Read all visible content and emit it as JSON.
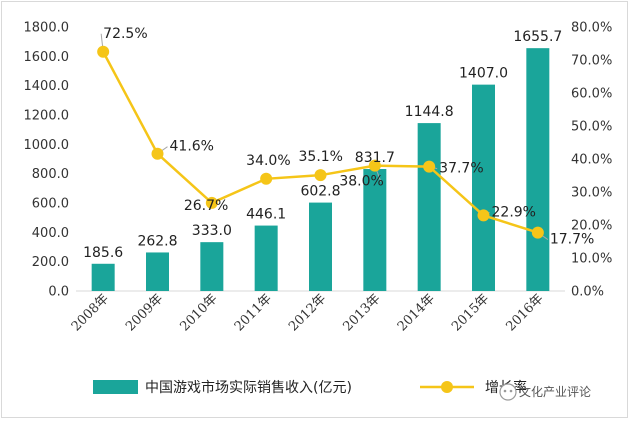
{
  "chart_data": {
    "type": "bar+line",
    "categories": [
      "2008年",
      "2009年",
      "2010年",
      "2011年",
      "2012年",
      "2013年",
      "2014年",
      "2015年",
      "2016年"
    ],
    "series": [
      {
        "name": "中国游戏市场实际销售收入(亿元)",
        "type": "bar",
        "axis": "left",
        "values": [
          185.6,
          262.8,
          333.0,
          446.1,
          602.8,
          831.7,
          1144.8,
          1407.0,
          1655.7
        ],
        "labels": [
          "185.6",
          "262.8",
          "333.0",
          "446.1",
          "602.8",
          "831.7",
          "1144.8",
          "1407.0",
          "1655.7"
        ]
      },
      {
        "name": "增长率",
        "type": "line",
        "axis": "right",
        "values": [
          72.5,
          41.6,
          26.7,
          34.0,
          35.1,
          38.0,
          37.7,
          22.9,
          17.7
        ],
        "labels": [
          "72.5%",
          "41.6%",
          "26.7%",
          "34.0%",
          "35.1%",
          "38.0%",
          "37.7%",
          "22.9%",
          "17.7%"
        ]
      }
    ],
    "y_left": {
      "min": 0,
      "max": 1800,
      "ticks": [
        "0.0",
        "200.0",
        "400.0",
        "600.0",
        "800.0",
        "1000.0",
        "1200.0",
        "1400.0",
        "1600.0",
        "1800.0"
      ]
    },
    "y_right": {
      "min": 0,
      "max": 80,
      "ticks": [
        "0.0%",
        "10.0%",
        "20.0%",
        "30.0%",
        "40.0%",
        "50.0%",
        "60.0%",
        "70.0%",
        "80.0%"
      ]
    },
    "legend_position": "bottom",
    "colors": {
      "bar": "#1aa59a",
      "line": "#f5c518",
      "axis": "#d9d9d9",
      "text": "#333333"
    }
  },
  "watermark": {
    "text": "文化产业评论"
  }
}
